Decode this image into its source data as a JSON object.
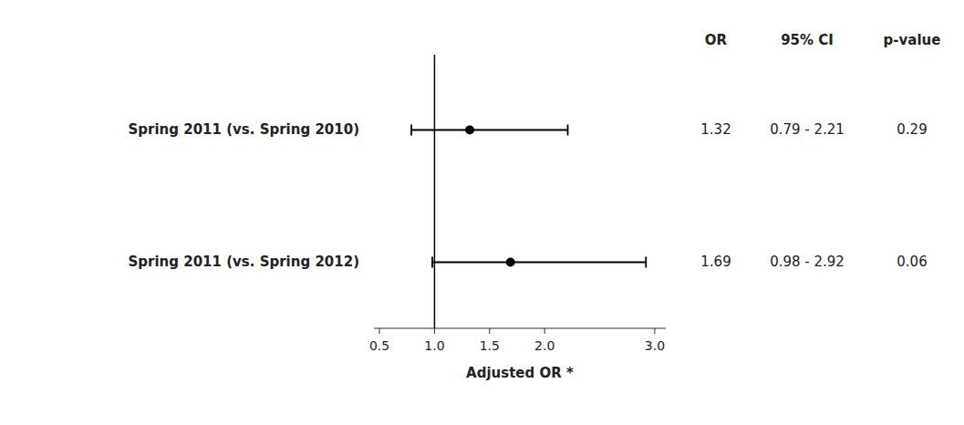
{
  "chart_data": {
    "type": "forest",
    "categories": [
      "Spring 2011 (vs. Spring 2010)",
      "Spring 2011 (vs. Spring 2012)"
    ],
    "values": [
      1.32,
      1.69
    ],
    "ci_low": [
      0.79,
      0.98
    ],
    "ci_high": [
      2.21,
      2.92
    ],
    "ci_labels": [
      "0.79 - 2.21",
      "0.98 - 2.92"
    ],
    "p_values": [
      0.29,
      0.06
    ],
    "columns": [
      "OR",
      "95% CI",
      "p-value"
    ],
    "xlabel": "Adjusted OR *",
    "xlim": [
      0.45,
      3.1
    ],
    "xticks": [
      0.5,
      {
        "value": 1.0,
        "label": "1.0"
      },
      1.5,
      {
        "value": 2.0,
        "label": "2.0"
      },
      {
        "value": 3.0,
        "label": "3.0"
      }
    ],
    "ref_line": 1.0,
    "color": "#000000",
    "grid": false
  }
}
